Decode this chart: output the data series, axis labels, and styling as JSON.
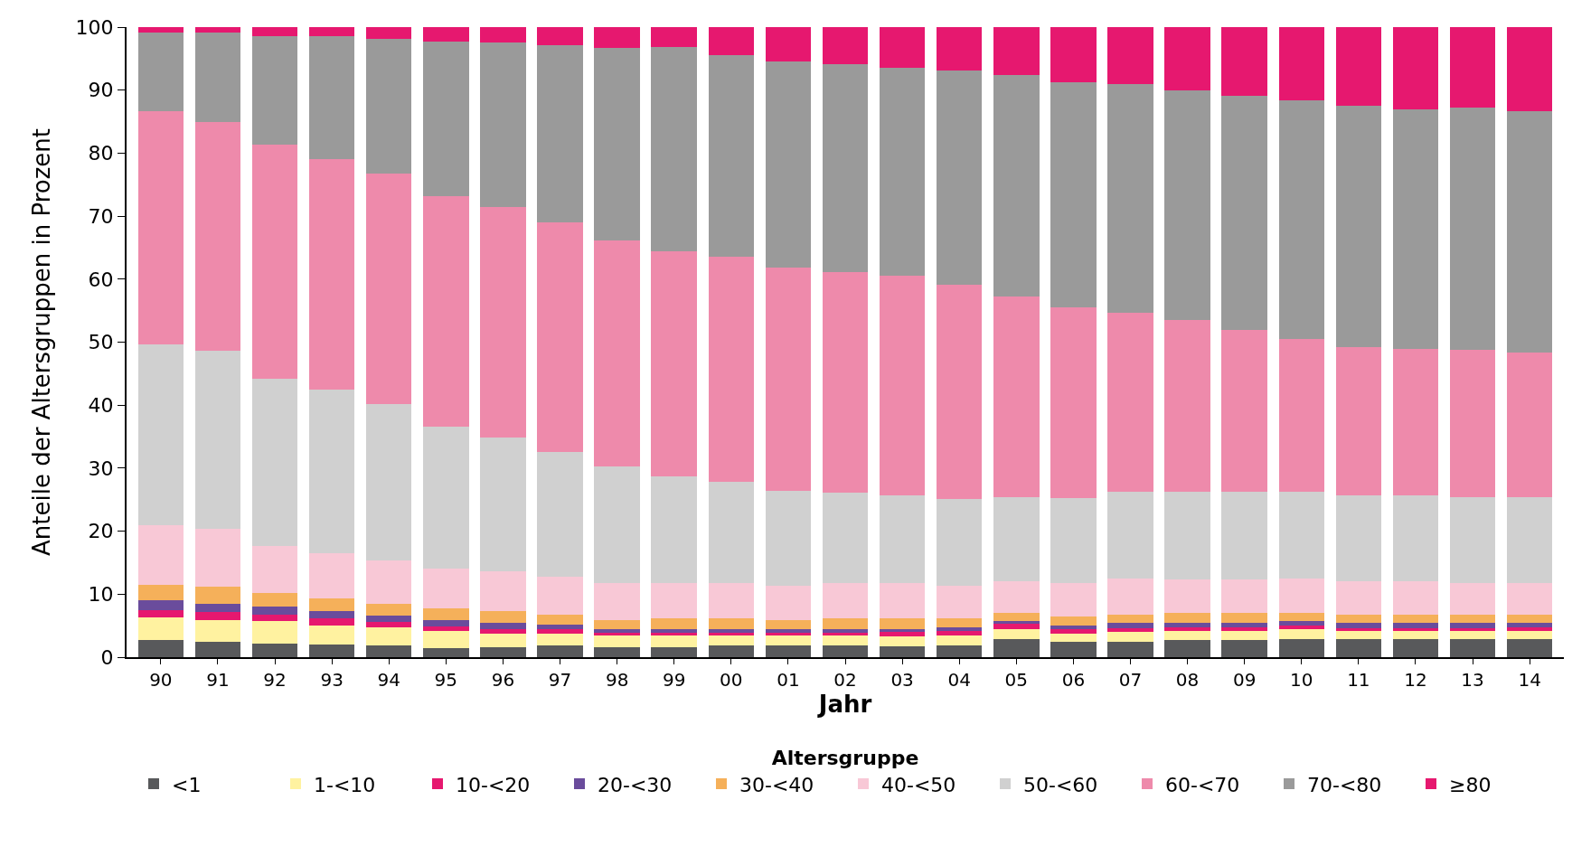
{
  "chart_data": {
    "type": "bar",
    "stacked": true,
    "xlabel": "Jahr",
    "ylabel": "Anteile der Altersgruppen in Prozent",
    "legend_title": "Altersgruppe",
    "legend": "bottom",
    "categories": [
      "90",
      "91",
      "92",
      "93",
      "94",
      "95",
      "96",
      "97",
      "98",
      "99",
      "00",
      "01",
      "02",
      "03",
      "04",
      "05",
      "06",
      "07",
      "08",
      "09",
      "10",
      "11",
      "12",
      "13",
      "14"
    ],
    "ylim": [
      0,
      100
    ],
    "yticks": [
      0,
      10,
      20,
      30,
      40,
      50,
      60,
      70,
      80,
      90,
      100
    ],
    "series": [
      {
        "name": "<1",
        "color": "#58595b",
        "values": [
          2.7,
          2.4,
          2.1,
          2.0,
          1.8,
          1.5,
          1.6,
          1.8,
          1.6,
          1.6,
          1.9,
          1.9,
          1.9,
          1.7,
          1.8,
          2.9,
          2.4,
          2.5,
          2.7,
          2.7,
          2.8,
          2.8,
          2.8,
          2.8,
          2.8
        ]
      },
      {
        "name": "1-<10",
        "color": "#fff2a0",
        "values": [
          3.6,
          3.5,
          3.6,
          3.0,
          2.9,
          2.6,
          2.2,
          2.0,
          1.8,
          1.8,
          1.5,
          1.5,
          1.5,
          1.6,
          1.6,
          1.5,
          1.3,
          1.5,
          1.4,
          1.4,
          1.6,
          1.3,
          1.3,
          1.3,
          1.4
        ]
      },
      {
        "name": "10-<20",
        "color": "#e6186f",
        "values": [
          1.2,
          1.3,
          1.1,
          1.1,
          0.9,
          0.8,
          0.7,
          0.6,
          0.5,
          0.5,
          0.5,
          0.5,
          0.5,
          0.7,
          0.7,
          0.9,
          0.7,
          0.6,
          0.7,
          0.7,
          0.6,
          0.5,
          0.5,
          0.5,
          0.5
        ]
      },
      {
        "name": "20-<30",
        "color": "#6a4c9c",
        "values": [
          1.5,
          1.3,
          1.2,
          1.2,
          1.0,
          1.0,
          1.0,
          0.8,
          0.5,
          0.5,
          0.6,
          0.5,
          0.6,
          0.5,
          0.6,
          0.5,
          0.6,
          0.8,
          0.7,
          0.7,
          0.8,
          0.8,
          0.8,
          0.8,
          0.7
        ]
      },
      {
        "name": "30-<40",
        "color": "#f5b05a",
        "values": [
          2.5,
          2.7,
          2.2,
          2.0,
          1.9,
          1.8,
          1.8,
          1.5,
          1.5,
          1.7,
          1.6,
          1.5,
          1.6,
          1.6,
          1.5,
          1.2,
          1.5,
          1.4,
          1.5,
          1.5,
          1.2,
          1.4,
          1.4,
          1.3,
          1.4
        ]
      },
      {
        "name": "40-<50",
        "color": "#f8c8d6",
        "values": [
          9.5,
          9.2,
          7.5,
          7.2,
          6.9,
          6.3,
          6.3,
          6.1,
          5.8,
          5.7,
          5.6,
          5.5,
          5.6,
          5.6,
          5.2,
          5.0,
          5.2,
          5.7,
          5.3,
          5.3,
          5.5,
          5.3,
          5.3,
          5.0,
          4.9
        ]
      },
      {
        "name": "50-<60",
        "color": "#d0d0d0",
        "values": [
          28.7,
          28.2,
          26.5,
          25.9,
          24.8,
          22.6,
          21.2,
          19.8,
          18.6,
          16.9,
          16.1,
          15.0,
          14.4,
          14.0,
          13.7,
          13.4,
          13.6,
          13.7,
          13.9,
          13.9,
          13.7,
          13.6,
          13.6,
          13.7,
          13.7
        ]
      },
      {
        "name": "60-<70",
        "color": "#ee8aab",
        "values": [
          37.0,
          36.4,
          37.1,
          36.7,
          36.6,
          36.6,
          36.7,
          36.4,
          35.9,
          35.7,
          35.7,
          35.5,
          35.0,
          34.8,
          34.0,
          31.8,
          30.2,
          28.5,
          27.3,
          25.7,
          24.3,
          23.5,
          23.2,
          23.4,
          22.9
        ]
      },
      {
        "name": "70-<80",
        "color": "#9a9a9a",
        "values": [
          12.5,
          14.1,
          17.3,
          19.4,
          21.4,
          24.5,
          26.0,
          28.2,
          30.5,
          32.5,
          32.0,
          32.7,
          33.0,
          33.1,
          34.0,
          35.2,
          35.8,
          36.3,
          36.5,
          37.2,
          37.9,
          38.3,
          38.1,
          38.4,
          38.4
        ]
      },
      {
        "name": "≥80",
        "color": "#e6186f",
        "values": [
          0.8,
          0.9,
          1.4,
          1.5,
          1.8,
          2.3,
          2.5,
          2.8,
          3.3,
          3.1,
          4.5,
          5.4,
          5.9,
          6.4,
          6.9,
          7.6,
          8.7,
          9.0,
          10.0,
          10.9,
          11.6,
          12.5,
          13.0,
          12.8,
          13.3
        ]
      }
    ]
  }
}
